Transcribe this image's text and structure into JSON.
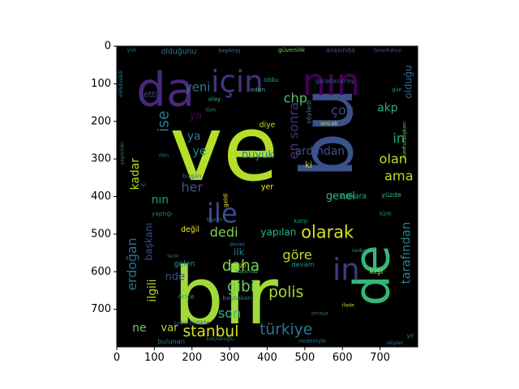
{
  "chart_data": {
    "type": "wordcloud",
    "title": "",
    "xlabel": "",
    "ylabel": "",
    "xlim": [
      0,
      800
    ],
    "ylim": [
      800,
      0
    ],
    "x_ticks": [
      0,
      100,
      200,
      300,
      400,
      500,
      600,
      700
    ],
    "y_ticks": [
      0,
      100,
      200,
      300,
      400,
      500,
      600,
      700
    ],
    "background": "#000000",
    "grid": false,
    "palette": [
      "#440154",
      "#482878",
      "#3e4989",
      "#31688e",
      "#26828e",
      "#1f9e89",
      "#35b779",
      "#6ece58",
      "#b5de2b",
      "#fde725"
    ],
    "words": [
      {
        "text": "ve",
        "x": 285,
        "y": 275,
        "fs": 240,
        "color": "#b5de2b",
        "rot": 0
      },
      {
        "text": "bir",
        "x": 290,
        "y": 665,
        "fs": 210,
        "color": "#a0da39",
        "rot": 0
      },
      {
        "text": "bu",
        "x": 560,
        "y": 230,
        "fs": 190,
        "color": "#3b528b",
        "rot": 90
      },
      {
        "text": "da",
        "x": 130,
        "y": 115,
        "fs": 125,
        "color": "#482878",
        "rot": 0
      },
      {
        "text": "nın",
        "x": 570,
        "y": 95,
        "fs": 100,
        "color": "#440154",
        "rot": 0
      },
      {
        "text": "için",
        "x": 320,
        "y": 95,
        "fs": 80,
        "color": "#46337e",
        "rot": 0
      },
      {
        "text": "ile",
        "x": 280,
        "y": 445,
        "fs": 70,
        "color": "#3e4989",
        "rot": 0
      },
      {
        "text": "de",
        "x": 680,
        "y": 610,
        "fs": 130,
        "color": "#35b779",
        "rot": 90
      },
      {
        "text": "in",
        "x": 610,
        "y": 595,
        "fs": 80,
        "color": "#443983",
        "rot": 0
      },
      {
        "text": "olarak",
        "x": 560,
        "y": 495,
        "fs": 45,
        "color": "#d8e219",
        "rot": 0
      },
      {
        "text": "türkiye",
        "x": 450,
        "y": 755,
        "fs": 40,
        "color": "#2a788e",
        "rot": 0
      },
      {
        "text": "stanbul",
        "x": 250,
        "y": 760,
        "fs": 40,
        "color": "#d8e219",
        "rot": 0
      },
      {
        "text": "polis",
        "x": 450,
        "y": 655,
        "fs": 40,
        "color": "#a8db34",
        "rot": 0
      },
      {
        "text": "daha",
        "x": 330,
        "y": 585,
        "fs": 40,
        "color": "#7ad151",
        "rot": 0
      },
      {
        "text": "gibi",
        "x": 330,
        "y": 640,
        "fs": 40,
        "color": "#6ece58",
        "rot": 0
      },
      {
        "text": "son",
        "x": 300,
        "y": 710,
        "fs": 35,
        "color": "#35b779",
        "rot": 0
      },
      {
        "text": "göre",
        "x": 480,
        "y": 555,
        "fs": 35,
        "color": "#bddf26",
        "rot": 0
      },
      {
        "text": "dedi",
        "x": 285,
        "y": 495,
        "fs": 35,
        "color": "#7ad151",
        "rot": 0
      },
      {
        "text": "ama",
        "x": 750,
        "y": 345,
        "fs": 35,
        "color": "#bddf26",
        "rot": 0
      },
      {
        "text": "olan",
        "x": 735,
        "y": 300,
        "fs": 35,
        "color": "#c2df23",
        "rot": 0
      },
      {
        "text": "akp",
        "x": 720,
        "y": 165,
        "fs": 30,
        "color": "#29af7f",
        "rot": 0
      },
      {
        "text": "in",
        "x": 750,
        "y": 245,
        "fs": 35,
        "color": "#22a884",
        "rot": 0
      },
      {
        "text": "çok",
        "x": 600,
        "y": 170,
        "fs": 35,
        "color": "#3e4989",
        "rot": 0
      },
      {
        "text": "chp",
        "x": 475,
        "y": 138,
        "fs": 35,
        "color": "#50c46a",
        "rot": 0
      },
      {
        "text": "en sonra",
        "x": 470,
        "y": 225,
        "fs": 35,
        "color": "#46327e",
        "rot": 90
      },
      {
        "text": "ardından",
        "x": 540,
        "y": 280,
        "fs": 30,
        "color": "#3b528b",
        "rot": 0
      },
      {
        "text": "tarafından",
        "x": 770,
        "y": 550,
        "fs": 32,
        "color": "#26828e",
        "rot": 90
      },
      {
        "text": "erdoğan",
        "x": 40,
        "y": 580,
        "fs": 34,
        "color": "#2c728e",
        "rot": 90
      },
      {
        "text": "kadar",
        "x": 50,
        "y": 340,
        "fs": 30,
        "color": "#b5de2b",
        "rot": 90
      },
      {
        "text": "ilgili",
        "x": 95,
        "y": 650,
        "fs": 30,
        "color": "#b5de2b",
        "rot": 90
      },
      {
        "text": "başkanı",
        "x": 85,
        "y": 520,
        "fs": 26,
        "color": "#3b528b",
        "rot": 90
      },
      {
        "text": "nın",
        "x": 115,
        "y": 410,
        "fs": 30,
        "color": "#1f9e89",
        "rot": 0
      },
      {
        "text": "her",
        "x": 200,
        "y": 375,
        "fs": 35,
        "color": "#3b528b",
        "rot": 0
      },
      {
        "text": "ise",
        "x": 125,
        "y": 200,
        "fs": 40,
        "color": "#2a788e",
        "rot": 90
      },
      {
        "text": "ya",
        "x": 210,
        "y": 185,
        "fs": 28,
        "color": "#440154",
        "rot": 0
      },
      {
        "text": "ya",
        "x": 205,
        "y": 240,
        "fs": 30,
        "color": "#2a788e",
        "rot": 0
      },
      {
        "text": "ye",
        "x": 220,
        "y": 280,
        "fs": 30,
        "color": "#21918c",
        "rot": 0
      },
      {
        "text": "yeni",
        "x": 215,
        "y": 110,
        "fs": 32,
        "color": "#2a788e",
        "rot": 0
      },
      {
        "text": "etti",
        "x": 90,
        "y": 130,
        "fs": 22,
        "color": "#3e4989",
        "rot": 0
      },
      {
        "text": "büyük",
        "x": 375,
        "y": 290,
        "fs": 28,
        "color": "#26828e",
        "rot": 0
      },
      {
        "text": "olduğu",
        "x": 775,
        "y": 95,
        "fs": 26,
        "color": "#31688e",
        "rot": 90
      },
      {
        "text": "genel",
        "x": 595,
        "y": 400,
        "fs": 28,
        "color": "#35b779",
        "rot": 0
      },
      {
        "text": "yapılan",
        "x": 430,
        "y": 495,
        "fs": 26,
        "color": "#2db27d",
        "rot": 0
      },
      {
        "text": "nde",
        "x": 155,
        "y": 615,
        "fs": 28,
        "color": "#3b528b",
        "rot": 0
      },
      {
        "text": "ne",
        "x": 60,
        "y": 750,
        "fs": 30,
        "color": "#6ece58",
        "rot": 0
      },
      {
        "text": "var",
        "x": 140,
        "y": 750,
        "fs": 28,
        "color": "#bddf26",
        "rot": 0
      },
      {
        "text": "ilk",
        "x": 325,
        "y": 548,
        "fs": 25,
        "color": "#26828e",
        "rot": 0
      },
      {
        "text": "gelen",
        "x": 180,
        "y": 580,
        "fs": 20,
        "color": "#1f9e89",
        "rot": 0
      },
      {
        "text": "önce",
        "x": 185,
        "y": 665,
        "fs": 18,
        "color": "#1f9e89",
        "rot": 0
      },
      {
        "text": "olduğunu",
        "x": 165,
        "y": 15,
        "fs": 20,
        "color": "#2a788e",
        "rot": 0
      },
      {
        "text": "yüzde",
        "x": 730,
        "y": 395,
        "fs": 18,
        "color": "#35b779",
        "rot": 0
      },
      {
        "text": "ankara",
        "x": 630,
        "y": 400,
        "fs": 20,
        "color": "#22a884",
        "rot": 0
      },
      {
        "text": "diye",
        "x": 400,
        "y": 210,
        "fs": 20,
        "color": "#b5de2b",
        "rot": 0
      },
      {
        "text": "galatasaray",
        "x": 580,
        "y": 92,
        "fs": 18,
        "color": "#3b528b",
        "rot": 0
      },
      {
        "text": "arasında",
        "x": 595,
        "y": 10,
        "fs": 18,
        "color": "#3b528b",
        "rot": 0
      },
      {
        "text": "güvenilik",
        "x": 465,
        "y": 10,
        "fs": 16,
        "color": "#6ece58",
        "rot": 0
      },
      {
        "text": "yer",
        "x": 400,
        "y": 375,
        "fs": 20,
        "color": "#fde725",
        "rot": 0
      },
      {
        "text": "bulunan",
        "x": 145,
        "y": 785,
        "fs": 18,
        "color": "#26828e",
        "rot": 0
      },
      {
        "text": "başbakan",
        "x": 320,
        "y": 670,
        "fs": 16,
        "color": "#26828e",
        "rot": 0
      },
      {
        "text": "değil",
        "x": 195,
        "y": 488,
        "fs": 20,
        "color": "#fde725",
        "rot": 0
      },
      {
        "text": "devam",
        "x": 495,
        "y": 580,
        "fs": 18,
        "color": "#21918c",
        "rot": 0
      },
      {
        "text": "karşı",
        "x": 490,
        "y": 465,
        "fs": 16,
        "color": "#1f9e89",
        "rot": 0
      },
      {
        "text": "kişi",
        "x": 690,
        "y": 600,
        "fs": 22,
        "color": "#a0da39",
        "rot": 0
      },
      {
        "text": "ki",
        "x": 510,
        "y": 318,
        "fs": 22,
        "color": "#bddf26",
        "rot": 0
      },
      {
        "text": "oldu",
        "x": 410,
        "y": 88,
        "fs": 18,
        "color": "#1f9e89",
        "rot": 0
      },
      {
        "text": "söyledi",
        "x": 510,
        "y": 175,
        "fs": 18,
        "color": "#26828e",
        "rot": 90
      },
      {
        "text": "bugün",
        "x": 200,
        "y": 345,
        "fs": 16,
        "color": "#31688e",
        "rot": 0
      },
      {
        "text": "birlikte",
        "x": 220,
        "y": 735,
        "fs": 16,
        "color": "#3b528b",
        "rot": 0
      },
      {
        "text": "olay",
        "x": 260,
        "y": 140,
        "fs": 16,
        "color": "#35b779",
        "rot": 0
      },
      {
        "text": "eden",
        "x": 375,
        "y": 115,
        "fs": 16,
        "color": "#35b779",
        "rot": 0
      },
      {
        "text": "yıl",
        "x": 780,
        "y": 770,
        "fs": 16,
        "color": "#26828e",
        "rot": 0
      },
      {
        "text": "türk",
        "x": 715,
        "y": 445,
        "fs": 16,
        "color": "#21918c",
        "rot": 0
      },
      {
        "text": "ancak",
        "x": 565,
        "y": 205,
        "fs": 16,
        "color": "#b5de2b",
        "rot": 0
      },
      {
        "text": "gün",
        "x": 745,
        "y": 115,
        "fs": 14,
        "color": "#22a884",
        "rot": 0
      },
      {
        "text": "yaptığı",
        "x": 120,
        "y": 445,
        "fs": 16,
        "color": "#2a788e",
        "rot": 0
      },
      {
        "text": "geldi",
        "x": 290,
        "y": 410,
        "fs": 15,
        "color": "#fde725",
        "rot": 90
      },
      {
        "text": "kişinin",
        "x": 260,
        "y": 463,
        "fs": 13,
        "color": "#26828e",
        "rot": 0
      },
      {
        "text": "yaşındaki",
        "x": 15,
        "y": 285,
        "fs": 13,
        "color": "#26828e",
        "rot": 90
      },
      {
        "text": "milletvekili",
        "x": 12,
        "y": 100,
        "fs": 13,
        "color": "#26828e",
        "rot": 90
      },
      {
        "text": "yük",
        "x": 40,
        "y": 10,
        "fs": 14,
        "color": "#2a788e",
        "rot": 0
      },
      {
        "text": "beşiktaş",
        "x": 300,
        "y": 12,
        "fs": 14,
        "color": "#2a788e",
        "rot": 0
      },
      {
        "text": "fenerbahçe",
        "x": 720,
        "y": 12,
        "fs": 13,
        "color": "#3b528b",
        "rot": 0
      },
      {
        "text": "cumhurbaşkanı",
        "x": 765,
        "y": 250,
        "fs": 13,
        "color": "#6ece58",
        "rot": 90
      },
      {
        "text": "tüm",
        "x": 250,
        "y": 170,
        "fs": 13,
        "color": "#1f9e89",
        "rot": 0
      },
      {
        "text": "dan",
        "x": 125,
        "y": 290,
        "fs": 14,
        "color": "#2c728e",
        "rot": 0
      },
      {
        "text": "kılıçdaroğlu",
        "x": 275,
        "y": 780,
        "fs": 13,
        "color": "#2a788e",
        "rot": 0
      },
      {
        "text": "kadın",
        "x": 170,
        "y": 738,
        "fs": 13,
        "color": "#3b528b",
        "rot": 0
      },
      {
        "text": "ortaya",
        "x": 540,
        "y": 710,
        "fs": 14,
        "color": "#2c728e",
        "rot": 0
      },
      {
        "text": "ifade",
        "x": 615,
        "y": 690,
        "fs": 13,
        "color": "#bddf26",
        "rot": 0
      },
      {
        "text": "neden",
        "x": 645,
        "y": 545,
        "fs": 13,
        "color": "#21918c",
        "rot": 0
      },
      {
        "text": "nedeniyle",
        "x": 520,
        "y": 785,
        "fs": 15,
        "color": "#2c728e",
        "rot": 0
      },
      {
        "text": "hakkında",
        "x": 345,
        "y": 600,
        "fs": 13,
        "color": "#35b779",
        "rot": 0
      },
      {
        "text": "terör",
        "x": 150,
        "y": 560,
        "fs": 13,
        "color": "#2c728e",
        "rot": 0
      },
      {
        "text": "devlet",
        "x": 320,
        "y": 528,
        "fs": 13,
        "color": "#2a788e",
        "rot": 0
      },
      {
        "text": "ekipler",
        "x": 740,
        "y": 790,
        "fs": 13,
        "color": "#2c728e",
        "rot": 0
      },
      {
        "text": "20",
        "x": 335,
        "y": 585,
        "fs": 13,
        "color": "#fde725",
        "rot": 0
      },
      {
        "text": "iyi",
        "x": 70,
        "y": 370,
        "fs": 13,
        "color": "#2a788e",
        "rot": 0
      }
    ]
  }
}
